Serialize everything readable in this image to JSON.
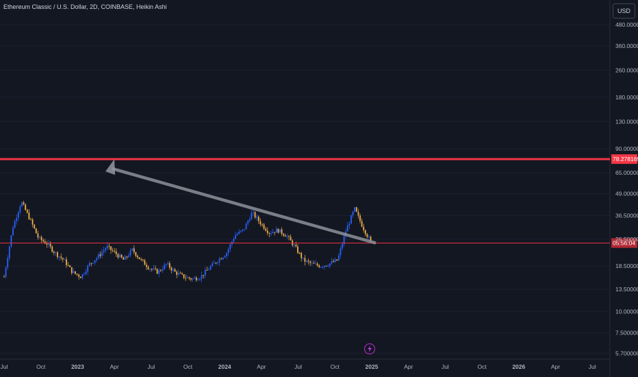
{
  "header": {
    "title": "Ethereum Classic / U.S. Dollar, 2D, COINBASE, Heikin Ashi",
    "currency_button": "USD"
  },
  "icons": {
    "flash": "lightning-bolt-icon"
  },
  "colors": {
    "background": "#131722",
    "up": "#2962ff",
    "down": "#f0b04a",
    "resistance": "#f23645",
    "arrow": "#9598a1"
  },
  "chart_data": {
    "type": "candlestick",
    "title": "Ethereum Classic / U.S. Dollar, 2D, COINBASE, Heikin Ashi",
    "y_scale": "log",
    "y_ticks": [
      "480.000000",
      "360.000000",
      "260.000000",
      "180.000000",
      "130.000000",
      "90.000000",
      "65.000000",
      "49.000000",
      "36.500000",
      "26.500000",
      "18.500000",
      "13.500000",
      "10.000000",
      "7.500000",
      "5.700000"
    ],
    "x_ticks": [
      "Jul",
      "Oct",
      "2023",
      "Apr",
      "Jul",
      "Oct",
      "2024",
      "Apr",
      "Jul",
      "Oct",
      "2025",
      "Apr",
      "Jul",
      "Oct",
      "2026",
      "Apr",
      "Jul"
    ],
    "resistance_level": {
      "label": "78.278169",
      "value": 78.278169
    },
    "current_price_tag": {
      "label": "05:56:04",
      "value": 25.2
    },
    "arrow": {
      "from": "2025",
      "to": "Apr",
      "from_value": 25.2,
      "to_value": 78.278169
    },
    "price_series": [
      {
        "date": "Jul",
        "value": 16
      },
      {
        "date": "",
        "value": 31
      },
      {
        "date": "",
        "value": 44
      },
      {
        "date": "",
        "value": 35
      },
      {
        "date": "",
        "value": 27
      },
      {
        "date": "Oct",
        "value": 25
      },
      {
        "date": "",
        "value": 22
      },
      {
        "date": "",
        "value": 20
      },
      {
        "date": "",
        "value": 17
      },
      {
        "date": "",
        "value": 16
      },
      {
        "date": "",
        "value": 19
      },
      {
        "date": "2023",
        "value": 21
      },
      {
        "date": "",
        "value": 24
      },
      {
        "date": "",
        "value": 22
      },
      {
        "date": "",
        "value": 20
      },
      {
        "date": "Apr",
        "value": 23
      },
      {
        "date": "",
        "value": 20
      },
      {
        "date": "",
        "value": 18
      },
      {
        "date": "",
        "value": 17
      },
      {
        "date": "Jul",
        "value": 19
      },
      {
        "date": "",
        "value": 17
      },
      {
        "date": "",
        "value": 16
      },
      {
        "date": "",
        "value": 15.5
      },
      {
        "date": "Oct",
        "value": 16
      },
      {
        "date": "",
        "value": 18
      },
      {
        "date": "",
        "value": 20
      },
      {
        "date": "2024",
        "value": 22
      },
      {
        "date": "",
        "value": 28
      },
      {
        "date": "",
        "value": 30
      },
      {
        "date": "",
        "value": 38
      },
      {
        "date": "Apr",
        "value": 33
      },
      {
        "date": "",
        "value": 29
      },
      {
        "date": "",
        "value": 30
      },
      {
        "date": "",
        "value": 28
      },
      {
        "date": "Jul",
        "value": 24
      },
      {
        "date": "",
        "value": 20
      },
      {
        "date": "",
        "value": 19
      },
      {
        "date": "",
        "value": 18.5
      },
      {
        "date": "Oct",
        "value": 19
      },
      {
        "date": "",
        "value": 20
      },
      {
        "date": "",
        "value": 30
      },
      {
        "date": "",
        "value": 40
      },
      {
        "date": "",
        "value": 31
      },
      {
        "date": "2025",
        "value": 25
      }
    ]
  }
}
